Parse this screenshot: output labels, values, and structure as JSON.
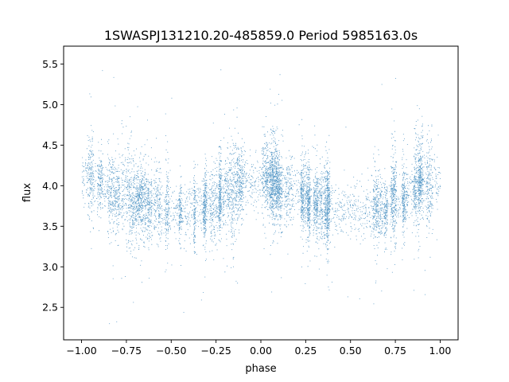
{
  "chart_data": {
    "type": "scatter",
    "title": "1SWASPJ131210.20-485859.0 Period 5985163.0s",
    "xlabel": "phase",
    "ylabel": "flux",
    "xlim": [
      -1.1,
      1.1
    ],
    "ylim": [
      2.1,
      5.72
    ],
    "xticks": [
      -1.0,
      -0.75,
      -0.5,
      -0.25,
      0.0,
      0.25,
      0.5,
      0.75,
      1.0
    ],
    "xtick_labels": [
      "−1.00",
      "−0.75",
      "−0.50",
      "−0.25",
      "0.00",
      "0.25",
      "0.50",
      "0.75",
      "1.00"
    ],
    "yticks": [
      2.5,
      3.0,
      3.5,
      4.0,
      4.5,
      5.0,
      5.5
    ],
    "ytick_labels": [
      "2.5",
      "3.0",
      "3.5",
      "4.0",
      "4.5",
      "5.0",
      "5.5"
    ],
    "grid": false,
    "legend": "none",
    "point_color": "#1f77b4",
    "series": [
      {
        "trend_phase": [
          -1.0,
          -0.9,
          -0.8,
          -0.75,
          -0.5,
          -0.4,
          -0.25,
          -0.2,
          -0.1,
          0.0,
          0.05,
          0.1,
          0.25,
          0.4,
          0.5,
          0.6,
          0.7,
          0.75,
          0.8,
          0.9,
          1.0
        ],
        "trend_flux": [
          4.1,
          4.0,
          3.88,
          3.85,
          3.7,
          3.7,
          3.8,
          3.9,
          4.05,
          4.1,
          4.1,
          4.0,
          3.85,
          3.7,
          3.7,
          3.68,
          3.75,
          3.85,
          3.9,
          4.05,
          4.1
        ],
        "flux_min": 2.28,
        "flux_max": 5.55
      }
    ]
  }
}
